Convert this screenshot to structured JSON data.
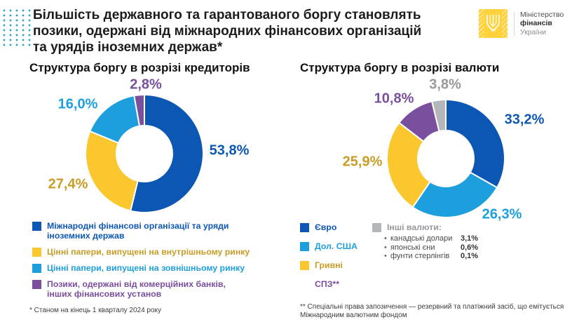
{
  "header": {
    "title_lines": [
      "Більшість державного та гарантованого боргу становлять",
      "позики, одержані від міжнародних фінансових організацій",
      "та урядів іноземних держав*"
    ],
    "logo": {
      "org_line1": "Міністерство",
      "org_line2": "фінансів",
      "org_line3": "України"
    }
  },
  "chart_data": [
    {
      "type": "pie",
      "donut": true,
      "title": "Структура боргу в розрізі кредиторів",
      "categories": [
        "Міжнародні фінансові організації та уряди іноземних держав",
        "Цінні папери, випущені на внутрішньому ринку",
        "Цінні папери, випущені на зовнішньому ринку",
        "Позики, одержані від комерційних банків, інших фінансових установ"
      ],
      "legend_labels": [
        "Міжнародні фінансові організації та уряди\nіноземних держав",
        "Цінні папери, випущені на внутрішньому ринку",
        "Цінні папери, випущені на зовнішньому ринку",
        "Позики, одержані від комерційних банків,\nінших фінансових установ"
      ],
      "values": [
        53.8,
        27.4,
        16.0,
        2.8
      ],
      "labels": [
        "53,8%",
        "27,4%",
        "16,0%",
        "2,8%"
      ],
      "colors": [
        "#0d57b4",
        "#fac72e",
        "#1d9fde",
        "#7a4f9e"
      ],
      "label_colors": [
        "#0d57b4",
        "#c89c26",
        "#1d9fde",
        "#7a4f9e"
      ],
      "footnote": "* Станом на кінець 1 кварталу 2024 року"
    },
    {
      "type": "pie",
      "donut": true,
      "title": "Структура боргу в розрізі валюти",
      "categories": [
        "Євро",
        "Дол. США",
        "Гривні",
        "СПЗ**",
        "Інші валюти"
      ],
      "values": [
        33.2,
        26.3,
        25.9,
        10.8,
        3.8
      ],
      "labels": [
        "33,2%",
        "26,3%",
        "25,9%",
        "10,8%",
        "3,8%"
      ],
      "colors": [
        "#0d57b4",
        "#1d9fde",
        "#fac72e",
        "#7a4f9e",
        "#b4b6b8"
      ],
      "label_colors": [
        "#0d57b4",
        "#1d9fde",
        "#c89c26",
        "#7a4f9e",
        "#97999c"
      ],
      "other_currencies": {
        "label": "Інші валюти:",
        "items": [
          {
            "name": "канадські долари",
            "value": "3,1%"
          },
          {
            "name": "японські єни",
            "value": "0,6%"
          },
          {
            "name": "фунти стерлінгів",
            "value": "0,1%"
          }
        ]
      },
      "footnote": "** Спеціальні права запозичення — резервний та платіжний засіб, що емітується\nМіжнародним валютним фондом"
    }
  ]
}
